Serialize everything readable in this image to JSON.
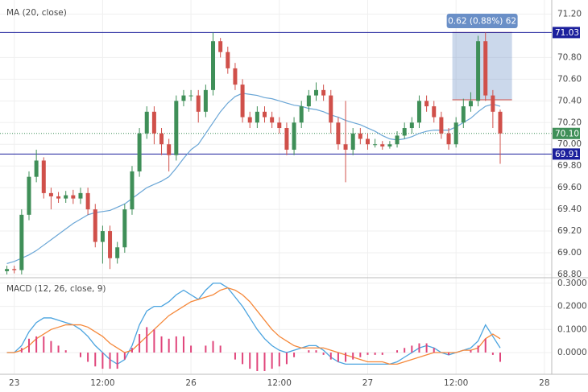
{
  "chart_data": [
    {
      "type": "candlestick",
      "series": [
        {
          "name": "MA (20, close)",
          "color": "#6aa6d6",
          "values": [
            68.9,
            68.92,
            68.95,
            68.98,
            69.02,
            69.07,
            69.12,
            69.17,
            69.22,
            69.27,
            69.31,
            69.35,
            69.37,
            69.38,
            69.39,
            69.42,
            69.45,
            69.5,
            69.55,
            69.6,
            69.63,
            69.66,
            69.7,
            69.78,
            69.87,
            69.95,
            70.0,
            70.1,
            70.2,
            70.3,
            70.38,
            70.44,
            70.47,
            70.46,
            70.45,
            70.43,
            70.42,
            70.4,
            70.38,
            70.36,
            70.35,
            70.33,
            70.32,
            70.3,
            70.27,
            70.25,
            70.22,
            70.2,
            70.18,
            70.15,
            70.12,
            70.08,
            70.05,
            70.04,
            70.05,
            70.07,
            70.1,
            70.12,
            70.13,
            70.13,
            70.13,
            70.16,
            70.2,
            70.24,
            70.3,
            70.35,
            70.37,
            70.35
          ]
        }
      ],
      "x": [
        -1,
        0,
        1,
        2,
        3,
        4,
        5,
        6,
        7,
        8,
        9,
        10,
        11,
        12,
        13,
        14,
        15,
        16,
        17,
        18,
        19,
        20,
        21,
        22,
        23,
        24,
        25,
        26,
        27,
        28,
        29,
        30,
        31,
        32,
        33,
        34,
        35,
        36,
        37,
        38,
        39,
        40,
        41,
        42,
        43,
        44,
        45,
        46,
        47,
        48,
        49,
        50,
        51,
        52,
        53,
        54,
        55,
        56,
        57,
        58,
        59,
        60,
        61,
        62,
        63,
        64,
        65,
        66
      ],
      "open": [
        68.83,
        68.85,
        68.84,
        69.35,
        69.7,
        69.85,
        69.55,
        69.52,
        69.5,
        69.53,
        69.5,
        69.55,
        69.4,
        69.1,
        69.2,
        68.95,
        69.05,
        69.4,
        69.75,
        70.1,
        70.3,
        70.1,
        70.0,
        69.9,
        70.4,
        70.45,
        70.45,
        70.3,
        70.5,
        70.95,
        70.85,
        70.7,
        70.55,
        70.25,
        70.2,
        70.3,
        70.25,
        70.2,
        70.15,
        69.95,
        70.2,
        70.35,
        70.45,
        70.5,
        70.45,
        70.2,
        70.0,
        69.95,
        70.1,
        70.05,
        70.0,
        70.0,
        69.98,
        70.0,
        70.08,
        70.15,
        70.2,
        70.4,
        70.35,
        70.25,
        70.1,
        70.0,
        70.2,
        70.35,
        70.4,
        70.95,
        70.45,
        70.3
      ],
      "high": [
        68.88,
        68.88,
        69.4,
        69.75,
        69.95,
        69.88,
        69.6,
        69.56,
        69.57,
        69.58,
        69.6,
        69.6,
        69.45,
        69.25,
        69.25,
        69.1,
        69.45,
        69.8,
        70.15,
        70.35,
        70.35,
        70.15,
        70.05,
        70.45,
        70.5,
        70.5,
        70.5,
        70.55,
        71.03,
        70.98,
        70.9,
        70.75,
        70.6,
        70.3,
        70.35,
        70.35,
        70.3,
        70.25,
        70.2,
        70.25,
        70.4,
        70.5,
        70.57,
        70.55,
        70.5,
        70.25,
        70.4,
        70.15,
        70.15,
        70.1,
        70.05,
        70.03,
        70.03,
        70.12,
        70.2,
        70.25,
        70.45,
        70.45,
        70.4,
        70.3,
        70.15,
        70.25,
        70.42,
        70.48,
        71.0,
        71.03,
        70.5,
        70.32
      ],
      "low": [
        68.8,
        68.81,
        68.8,
        69.3,
        69.65,
        69.5,
        69.4,
        69.46,
        69.46,
        69.45,
        69.45,
        69.35,
        69.05,
        68.9,
        68.85,
        68.9,
        69.0,
        69.35,
        69.7,
        70.05,
        70.0,
        69.9,
        69.75,
        69.85,
        70.35,
        70.4,
        70.2,
        70.25,
        70.45,
        70.8,
        70.65,
        70.5,
        70.2,
        70.15,
        70.15,
        70.2,
        70.15,
        70.1,
        69.9,
        69.9,
        70.15,
        70.3,
        70.4,
        70.4,
        70.1,
        69.95,
        69.65,
        69.9,
        70.0,
        69.95,
        69.97,
        69.95,
        69.96,
        69.97,
        70.05,
        70.1,
        70.15,
        70.3,
        70.2,
        70.05,
        69.95,
        69.97,
        70.15,
        70.3,
        70.35,
        70.4,
        70.15,
        69.82
      ],
      "close": [
        68.85,
        68.84,
        69.35,
        69.7,
        69.85,
        69.55,
        69.52,
        69.5,
        69.53,
        69.5,
        69.55,
        69.4,
        69.1,
        69.2,
        68.95,
        69.05,
        69.4,
        69.75,
        70.1,
        70.3,
        70.1,
        70.0,
        69.9,
        70.4,
        70.45,
        70.45,
        70.3,
        70.5,
        70.95,
        70.85,
        70.7,
        70.55,
        70.25,
        70.2,
        70.3,
        70.25,
        70.2,
        70.15,
        69.95,
        70.2,
        70.35,
        70.45,
        70.5,
        70.45,
        70.2,
        70.0,
        69.95,
        70.1,
        70.05,
        70.0,
        70.0,
        69.98,
        70.0,
        70.08,
        70.15,
        70.2,
        70.4,
        70.35,
        70.25,
        70.1,
        70.0,
        70.2,
        70.35,
        70.4,
        70.95,
        70.45,
        70.3,
        70.1
      ],
      "up_color": "#3f8f58",
      "down_color": "#d0504a",
      "xlim": [
        -1.5,
        73
      ],
      "ylim": [
        68.77,
        71.33
      ],
      "yticks": [
        {
          "value": 68.8,
          "label": "68.80"
        },
        {
          "value": 69.0,
          "label": "69.00"
        },
        {
          "value": 69.2,
          "label": "69.20"
        },
        {
          "value": 69.4,
          "label": "69.40"
        },
        {
          "value": 69.6,
          "label": "69.60"
        },
        {
          "value": 69.8,
          "label": "69.80"
        },
        {
          "value": 70.0,
          "label": "70.00"
        },
        {
          "value": 70.2,
          "label": "70.20"
        },
        {
          "value": 70.4,
          "label": "70.40"
        },
        {
          "value": 70.6,
          "label": "70.60"
        },
        {
          "value": 70.8,
          "label": "70.80"
        },
        {
          "value": 71.2,
          "label": "71.20"
        }
      ],
      "hlines": [
        {
          "value": 71.03,
          "label": "71.03",
          "color": "#1b1f9c"
        },
        {
          "value": 69.91,
          "label": "69.91",
          "color": "#1b1f9c"
        }
      ],
      "last_price": {
        "value": 70.1,
        "label": "70.10",
        "color": "#3f8f58"
      },
      "measure": {
        "label": "0.62 (0.88%) 62",
        "from": 70.41,
        "to": 71.03,
        "x_from": 59.5,
        "x_to": 67.6,
        "color": "#6a8fc7"
      }
    },
    {
      "type": "macd",
      "title": "MACD (12, 26, close, 9)",
      "series": [
        {
          "color": "#4aa3df",
          "values": [
            0.0,
            0.0,
            0.03,
            0.09,
            0.13,
            0.15,
            0.15,
            0.14,
            0.13,
            0.12,
            0.1,
            0.07,
            0.03,
            0.0,
            -0.03,
            -0.05,
            -0.03,
            0.03,
            0.12,
            0.18,
            0.2,
            0.2,
            0.22,
            0.25,
            0.27,
            0.25,
            0.23,
            0.27,
            0.3,
            0.3,
            0.28,
            0.24,
            0.2,
            0.15,
            0.1,
            0.06,
            0.03,
            0.01,
            0.0,
            0.01,
            0.02,
            0.03,
            0.03,
            0.01,
            -0.02,
            -0.04,
            -0.05,
            -0.05,
            -0.05,
            -0.05,
            -0.05,
            -0.05,
            -0.05,
            -0.04,
            -0.02,
            0.0,
            0.02,
            0.03,
            0.02,
            0.0,
            -0.01,
            0.0,
            0.01,
            0.02,
            0.05,
            0.12,
            0.07,
            0.02
          ]
        },
        {
          "color": "#f5883a",
          "values": [
            0.0,
            0.0,
            0.01,
            0.03,
            0.06,
            0.08,
            0.1,
            0.11,
            0.12,
            0.12,
            0.12,
            0.11,
            0.09,
            0.07,
            0.04,
            0.02,
            0.0,
            0.01,
            0.04,
            0.07,
            0.1,
            0.13,
            0.16,
            0.18,
            0.2,
            0.22,
            0.23,
            0.24,
            0.25,
            0.27,
            0.28,
            0.27,
            0.25,
            0.22,
            0.18,
            0.14,
            0.1,
            0.07,
            0.05,
            0.03,
            0.02,
            0.02,
            0.02,
            0.02,
            0.01,
            0.0,
            -0.01,
            -0.02,
            -0.03,
            -0.04,
            -0.04,
            -0.04,
            -0.05,
            -0.05,
            -0.04,
            -0.03,
            -0.02,
            -0.01,
            0.0,
            0.0,
            0.0,
            0.0,
            0.01,
            0.01,
            0.02,
            0.06,
            0.08,
            0.06
          ]
        },
        {
          "color": "#e0457b",
          "histogram": true,
          "values": [
            0,
            0,
            0.02,
            0.06,
            0.07,
            0.07,
            0.05,
            0.03,
            0.01,
            0,
            -0.02,
            -0.04,
            -0.06,
            -0.07,
            -0.07,
            -0.07,
            -0.03,
            0.02,
            0.08,
            0.11,
            0.1,
            0.07,
            0.06,
            0.07,
            0.07,
            0.03,
            0,
            0.03,
            0.05,
            0.03,
            0,
            -0.03,
            -0.05,
            -0.07,
            -0.08,
            -0.08,
            -0.07,
            -0.06,
            -0.05,
            -0.02,
            0,
            0.01,
            0.01,
            -0.01,
            -0.03,
            -0.04,
            -0.04,
            -0.03,
            -0.02,
            -0.01,
            -0.01,
            -0.01,
            0,
            0.01,
            0.02,
            0.03,
            0.04,
            0.04,
            0.02,
            0,
            -0.01,
            0,
            0,
            0.01,
            0.03,
            0.06,
            -0.01,
            -0.04
          ]
        }
      ],
      "ylim": [
        -0.094,
        0.324
      ],
      "yticks": [
        {
          "value": 0.0,
          "label": "0.0000"
        },
        {
          "value": 0.1,
          "label": "0.1000"
        },
        {
          "value": 0.2,
          "label": "0.2000"
        },
        {
          "value": 0.3,
          "label": "0.3000"
        }
      ],
      "xticks": [
        {
          "value": 0,
          "label": "23"
        },
        {
          "value": 12,
          "label": "12:00"
        },
        {
          "value": 24,
          "label": "26"
        },
        {
          "value": 36,
          "label": "12:00"
        },
        {
          "value": 48,
          "label": "27"
        },
        {
          "value": 60,
          "label": "12:00"
        },
        {
          "value": 72,
          "label": "28"
        }
      ]
    }
  ]
}
